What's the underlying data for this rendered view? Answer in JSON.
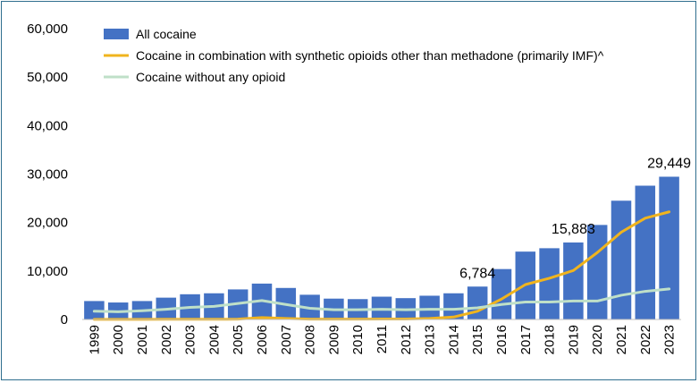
{
  "chart_data": {
    "type": "bar",
    "categories": [
      "1999",
      "2000",
      "2001",
      "2002",
      "2003",
      "2004",
      "2005",
      "2006",
      "2007",
      "2008",
      "2009",
      "2010",
      "2011",
      "2012",
      "2013",
      "2014",
      "2015",
      "2016",
      "2017",
      "2018",
      "2019",
      "2020",
      "2021",
      "2022",
      "2023"
    ],
    "ylim": [
      0,
      60000
    ],
    "yticks": [
      "0",
      "10,000",
      "20,000",
      "30,000",
      "40,000",
      "50,000",
      "60,000"
    ],
    "ytick_values": [
      0,
      10000,
      20000,
      30000,
      40000,
      50000,
      60000
    ],
    "grid": false,
    "legend_position": "top-left",
    "series": [
      {
        "name": "All cocaine",
        "kind": "bar",
        "color": "#4472c4",
        "values": [
          3800,
          3500,
          3800,
          4500,
          5200,
          5400,
          6200,
          7400,
          6500,
          5100,
          4300,
          4200,
          4700,
          4400,
          4900,
          5400,
          6784,
          10400,
          14000,
          14700,
          15883,
          19500,
          24500,
          27600,
          29449
        ]
      },
      {
        "name": "Cocaine in combination with synthetic opioids other than methadone (primarily IMF)^",
        "kind": "line",
        "color": "#f0b41e",
        "values": [
          20,
          20,
          20,
          40,
          50,
          50,
          60,
          400,
          200,
          60,
          60,
          60,
          100,
          100,
          200,
          500,
          1700,
          4200,
          7200,
          8500,
          10100,
          13800,
          18000,
          20900,
          22200
        ]
      },
      {
        "name": "Cocaine without any opioid",
        "kind": "line",
        "color": "#bfe0c8",
        "values": [
          1700,
          1600,
          1800,
          2100,
          2500,
          2700,
          3300,
          3900,
          3100,
          2300,
          2000,
          2000,
          2100,
          2000,
          2100,
          2100,
          2400,
          3100,
          3600,
          3600,
          3800,
          3800,
          5000,
          5800,
          6300
        ]
      }
    ],
    "data_labels": [
      {
        "category": "2015",
        "text": "6,784"
      },
      {
        "category": "2019",
        "text": "15,883"
      },
      {
        "category": "2023",
        "text": "29,449"
      }
    ]
  }
}
